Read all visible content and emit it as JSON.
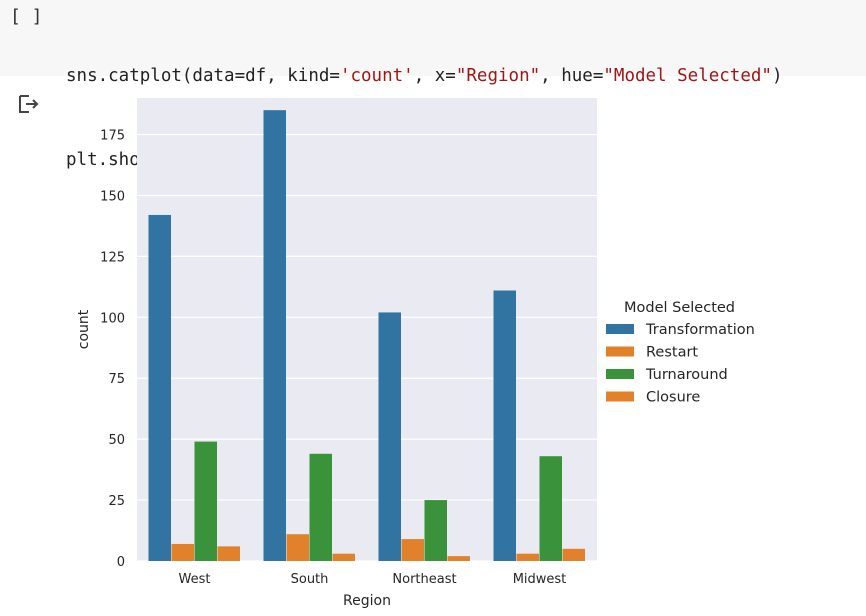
{
  "cell": {
    "run_indicator": "[ ]",
    "code_line_1_prefix": "sns.catplot(data=df, kind=",
    "code_line_1_str1": "'count'",
    "code_line_1_mid1": ", x=",
    "code_line_1_str2": "\"Region\"",
    "code_line_1_mid2": ", hue=",
    "code_line_1_str3": "\"Model Selected\"",
    "code_line_1_suffix": ")",
    "code_line_2": "plt.show()"
  },
  "output": {
    "icon": "output-arrow-icon"
  },
  "colors": {
    "plot_bg": "#eaeaf2",
    "grid": "#ffffff",
    "Transformation": "#3274a1",
    "Restart": "#e1812c",
    "Turnaround": "#3a923a",
    "Closure": "#e1812c"
  },
  "chart_data": {
    "type": "bar",
    "xlabel": "Region",
    "ylabel": "count",
    "categories": [
      "West",
      "South",
      "Northeast",
      "Midwest"
    ],
    "ylim": [
      0,
      190
    ],
    "yticks": [
      0,
      25,
      50,
      75,
      100,
      125,
      150,
      175
    ],
    "grid": true,
    "legend": {
      "title": "Model Selected",
      "placement": "right"
    },
    "series": [
      {
        "name": "Transformation",
        "values": [
          142,
          185,
          102,
          111
        ]
      },
      {
        "name": "Restart",
        "values": [
          7,
          11,
          9,
          3
        ]
      },
      {
        "name": "Turnaround",
        "values": [
          49,
          44,
          25,
          43
        ]
      },
      {
        "name": "Closure",
        "values": [
          6,
          3,
          2,
          5
        ]
      }
    ]
  }
}
